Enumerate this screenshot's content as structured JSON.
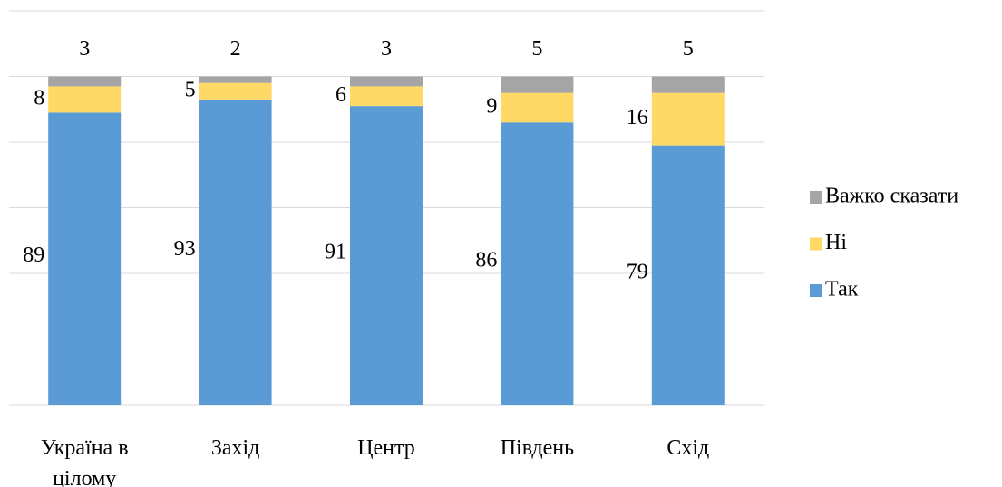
{
  "chart_data": {
    "type": "stacked_bar",
    "categories": [
      "Україна в цілому",
      "Захід",
      "Центр",
      "Південь",
      "Схід"
    ],
    "series": [
      {
        "name": "Так",
        "color": "#5b9bd5",
        "values": [
          89,
          93,
          91,
          86,
          79
        ]
      },
      {
        "name": "Ні",
        "color": "#ffd966",
        "values": [
          8,
          5,
          6,
          9,
          16
        ]
      },
      {
        "name": "Важко сказати",
        "color": "#a5a5a5",
        "values": [
          3,
          2,
          3,
          5,
          5
        ]
      }
    ],
    "ylim": [
      0,
      120
    ],
    "yticks": [
      0,
      20,
      40,
      60,
      80,
      100,
      120
    ],
    "grid": true,
    "legend": "right"
  }
}
